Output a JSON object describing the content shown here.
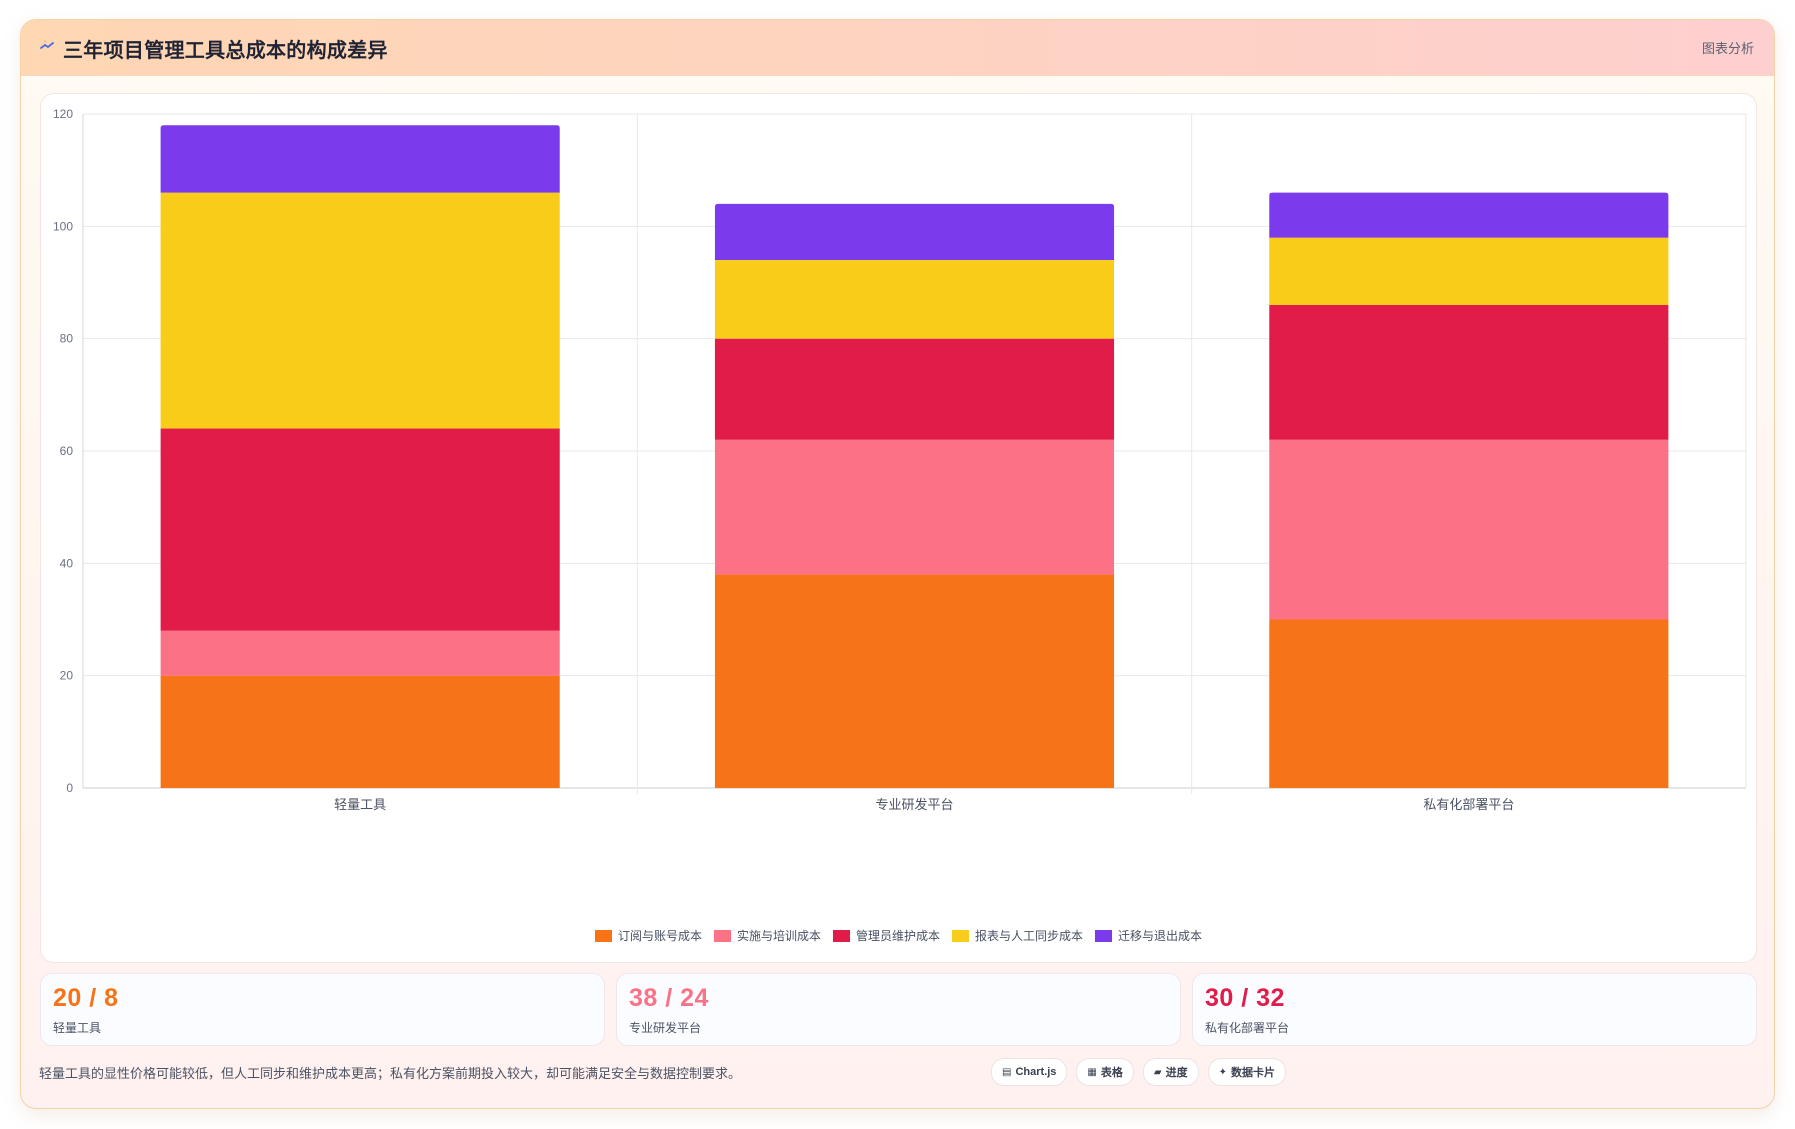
{
  "header": {
    "title": "三年项目管理工具总成本的构成差异",
    "action_label": "图表分析",
    "icon": "sparkle-icon"
  },
  "chart_data": {
    "type": "bar",
    "stacked": true,
    "categories": [
      "轻量工具",
      "专业研发平台",
      "私有化部署平台"
    ],
    "series": [
      {
        "name": "订阅与账号成本",
        "color": "#f77318",
        "values": [
          20,
          38,
          30
        ]
      },
      {
        "name": "实施与培训成本",
        "color": "#fb7186",
        "values": [
          8,
          24,
          32
        ]
      },
      {
        "name": "管理员维护成本",
        "color": "#e11c48",
        "values": [
          36,
          18,
          24
        ]
      },
      {
        "name": "报表与人工同步成本",
        "color": "#f8cc18",
        "values": [
          42,
          14,
          12
        ]
      },
      {
        "name": "迁移与退出成本",
        "color": "#7c3aed",
        "values": [
          12,
          10,
          8
        ]
      }
    ],
    "ylim": [
      0,
      120
    ],
    "yticks": [
      0,
      20,
      40,
      60,
      80,
      100,
      120
    ],
    "grid": true,
    "legend_position": "bottom-center"
  },
  "stats": [
    {
      "value": "20 / 8",
      "label": "轻量工具",
      "color": "#f77318"
    },
    {
      "value": "38 / 24",
      "label": "专业研发平台",
      "color": "#fb7186"
    },
    {
      "value": "30 / 32",
      "label": "私有化部署平台",
      "color": "#e11c48"
    }
  ],
  "footer": {
    "note": "轻量工具的显性价格可能较低，但人工同步和维护成本更高；私有化方案前期投入较大，却可能满足安全与数据控制要求。",
    "chips": [
      {
        "icon": "▤",
        "icon_name": "chart-icon",
        "label": "Chart.js"
      },
      {
        "icon": "▦",
        "icon_name": "table-icon",
        "label": "表格"
      },
      {
        "icon": "▰",
        "icon_name": "progress-icon",
        "label": "进度"
      },
      {
        "icon": "✦",
        "icon_name": "card-icon",
        "label": "数据卡片"
      }
    ]
  }
}
